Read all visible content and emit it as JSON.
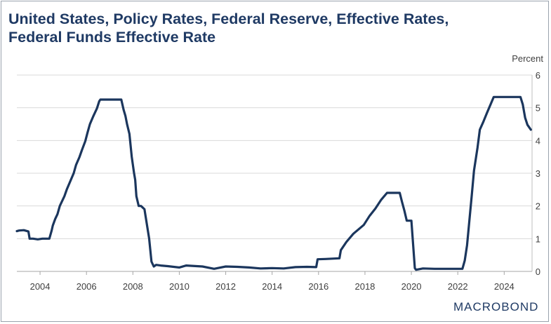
{
  "title_line1": "United States, Policy Rates, Federal Reserve, Effective Rates,",
  "title_line2": "Federal Funds Effective Rate",
  "brand": "MACROBOND",
  "colors": {
    "line": "#1b365d",
    "title": "#1f3a64",
    "grid": "#d9d9d9",
    "axis": "#404040"
  },
  "chart_data": {
    "type": "line",
    "title": "United States, Policy Rates, Federal Reserve, Effective Rates, Federal Funds Effective Rate",
    "ylabel": "Percent",
    "xlabel": "",
    "xlim": [
      2003.0,
      2025.2
    ],
    "ylim": [
      0,
      6
    ],
    "y_ticks": [
      "0",
      "1",
      "2",
      "3",
      "4",
      "5",
      "6"
    ],
    "x_ticks": [
      "2004",
      "2006",
      "2008",
      "2010",
      "2012",
      "2014",
      "2016",
      "2018",
      "2020",
      "2022",
      "2024"
    ],
    "grid": "horizontal",
    "y_axis_position": "right",
    "series": [
      {
        "color": "#1b365d",
        "x": [
          2003.0,
          2003.1,
          2003.3,
          2003.5,
          2003.55,
          2003.7,
          2003.9,
          2004.1,
          2004.4,
          2004.5,
          2004.55,
          2004.65,
          2004.75,
          2004.85,
          2004.95,
          2005.05,
          2005.15,
          2005.3,
          2005.45,
          2005.55,
          2005.7,
          2005.8,
          2005.95,
          2006.05,
          2006.15,
          2006.3,
          2006.45,
          2006.55,
          2006.6,
          2007.5,
          2007.6,
          2007.68,
          2007.75,
          2007.85,
          2007.95,
          2008.05,
          2008.1,
          2008.15,
          2008.25,
          2008.3,
          2008.35,
          2008.5,
          2008.7,
          2008.8,
          2008.9,
          2009.0,
          2009.2,
          2009.5,
          2010.0,
          2010.3,
          2011.0,
          2011.5,
          2012.0,
          2012.5,
          2013.0,
          2013.5,
          2014.0,
          2014.5,
          2015.0,
          2015.5,
          2015.9,
          2015.96,
          2016.3,
          2016.9,
          2016.96,
          2017.2,
          2017.5,
          2017.95,
          2018.2,
          2018.45,
          2018.7,
          2018.95,
          2019.5,
          2019.6,
          2019.7,
          2019.8,
          2020.0,
          2020.15,
          2020.2,
          2020.5,
          2021.0,
          2021.5,
          2022.2,
          2022.3,
          2022.4,
          2022.5,
          2022.6,
          2022.7,
          2022.85,
          2022.95,
          2023.1,
          2023.25,
          2023.4,
          2023.55,
          2024.7,
          2024.8,
          2024.9,
          2025.0,
          2025.15
        ],
        "y": [
          1.23,
          1.25,
          1.26,
          1.22,
          1.0,
          1.0,
          0.98,
          1.0,
          1.0,
          1.25,
          1.4,
          1.6,
          1.75,
          2.0,
          2.15,
          2.3,
          2.5,
          2.75,
          3.0,
          3.25,
          3.5,
          3.7,
          3.98,
          4.25,
          4.5,
          4.75,
          4.98,
          5.2,
          5.25,
          5.25,
          4.94,
          4.75,
          4.5,
          4.2,
          3.5,
          3.0,
          2.8,
          2.3,
          2.0,
          2.0,
          2.0,
          1.9,
          1.0,
          0.3,
          0.15,
          0.2,
          0.18,
          0.16,
          0.12,
          0.18,
          0.15,
          0.08,
          0.15,
          0.14,
          0.12,
          0.09,
          0.1,
          0.09,
          0.13,
          0.14,
          0.13,
          0.37,
          0.38,
          0.4,
          0.65,
          0.9,
          1.15,
          1.42,
          1.7,
          1.92,
          2.19,
          2.4,
          2.4,
          2.12,
          1.85,
          1.55,
          1.55,
          0.1,
          0.05,
          0.09,
          0.08,
          0.08,
          0.08,
          0.33,
          0.8,
          1.55,
          2.3,
          3.08,
          3.78,
          4.33,
          4.57,
          4.83,
          5.08,
          5.33,
          5.33,
          5.1,
          4.7,
          4.48,
          4.33
        ]
      }
    ]
  }
}
